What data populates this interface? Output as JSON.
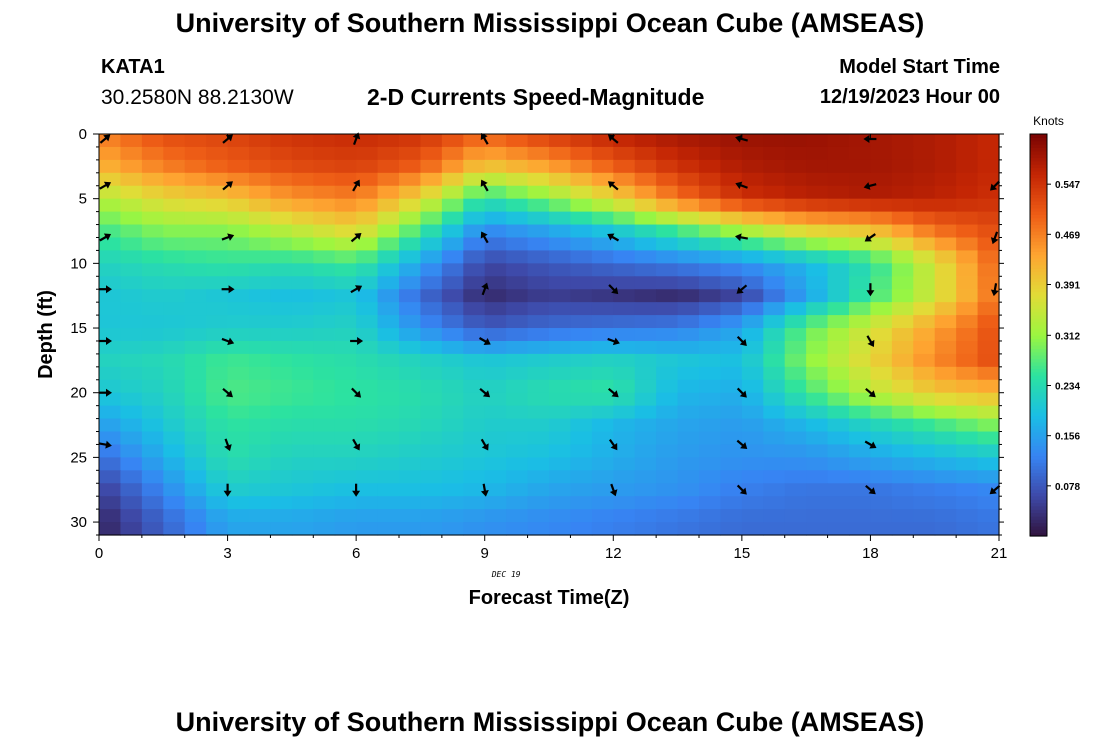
{
  "titles": {
    "top": "University of Southern Mississippi Ocean Cube (AMSEAS)",
    "bottom": "University of Southern Mississippi Ocean Cube (AMSEAS)"
  },
  "station": {
    "id": "KATA1",
    "coords": "30.2580N  88.2130W"
  },
  "model_start": {
    "label": "Model Start Time",
    "value": "12/19/2023 Hour 00"
  },
  "chart_data": {
    "type": "heatmap",
    "title": "2-D Currents Speed-Magnitude",
    "xlabel": "Forecast Time(Z)",
    "ylabel": "Depth (ft)",
    "date_label": "DEC 19",
    "xlim": [
      0,
      21
    ],
    "ylim": [
      0,
      31
    ],
    "x_ticks": [
      0,
      3,
      6,
      9,
      12,
      15,
      18,
      21
    ],
    "y_ticks": [
      0,
      5,
      10,
      15,
      20,
      25,
      30
    ],
    "colorbar": {
      "units": "Knots",
      "range": [
        0.0,
        0.625
      ],
      "ticks": [
        "0.547",
        "0.469",
        "0.391",
        "0.312",
        "0.234",
        "0.156",
        "0.078"
      ]
    },
    "grid_x": [
      0,
      1.5,
      3,
      4.5,
      6,
      7.5,
      9,
      10.5,
      12,
      13.5,
      15,
      16.5,
      18,
      19.5,
      21
    ],
    "grid_depth": [
      0,
      2.5,
      5,
      7.5,
      10,
      12.5,
      15,
      17.5,
      20,
      22.5,
      25,
      27.5,
      30
    ],
    "speed": [
      [
        0.47,
        0.52,
        0.53,
        0.55,
        0.56,
        0.55,
        0.5,
        0.54,
        0.57,
        0.59,
        0.6,
        0.6,
        0.59,
        0.58,
        0.56
      ],
      [
        0.42,
        0.47,
        0.5,
        0.52,
        0.53,
        0.5,
        0.4,
        0.44,
        0.5,
        0.55,
        0.58,
        0.59,
        0.59,
        0.58,
        0.56
      ],
      [
        0.33,
        0.38,
        0.4,
        0.45,
        0.47,
        0.38,
        0.24,
        0.3,
        0.38,
        0.48,
        0.55,
        0.57,
        0.58,
        0.57,
        0.55
      ],
      [
        0.26,
        0.3,
        0.3,
        0.34,
        0.38,
        0.26,
        0.13,
        0.16,
        0.2,
        0.26,
        0.32,
        0.38,
        0.4,
        0.48,
        0.52
      ],
      [
        0.22,
        0.24,
        0.25,
        0.24,
        0.26,
        0.16,
        0.06,
        0.08,
        0.1,
        0.12,
        0.14,
        0.18,
        0.24,
        0.36,
        0.5
      ],
      [
        0.2,
        0.21,
        0.2,
        0.19,
        0.2,
        0.1,
        0.03,
        0.05,
        0.04,
        0.03,
        0.06,
        0.16,
        0.26,
        0.36,
        0.49
      ],
      [
        0.2,
        0.2,
        0.21,
        0.21,
        0.22,
        0.14,
        0.08,
        0.1,
        0.11,
        0.12,
        0.16,
        0.28,
        0.36,
        0.44,
        0.52
      ],
      [
        0.22,
        0.23,
        0.26,
        0.25,
        0.24,
        0.22,
        0.2,
        0.21,
        0.22,
        0.2,
        0.19,
        0.3,
        0.38,
        0.46,
        0.52
      ],
      [
        0.2,
        0.22,
        0.27,
        0.26,
        0.25,
        0.24,
        0.22,
        0.24,
        0.25,
        0.18,
        0.17,
        0.26,
        0.34,
        0.4,
        0.42
      ],
      [
        0.15,
        0.2,
        0.25,
        0.24,
        0.24,
        0.23,
        0.21,
        0.21,
        0.18,
        0.16,
        0.15,
        0.18,
        0.22,
        0.26,
        0.3
      ],
      [
        0.1,
        0.17,
        0.24,
        0.22,
        0.22,
        0.21,
        0.2,
        0.19,
        0.17,
        0.15,
        0.14,
        0.14,
        0.16,
        0.18,
        0.2
      ],
      [
        0.05,
        0.13,
        0.21,
        0.2,
        0.19,
        0.19,
        0.18,
        0.16,
        0.15,
        0.14,
        0.12,
        0.11,
        0.11,
        0.12,
        0.13
      ],
      [
        0.02,
        0.09,
        0.16,
        0.16,
        0.15,
        0.15,
        0.14,
        0.13,
        0.12,
        0.11,
        0.1,
        0.1,
        0.1,
        0.1,
        0.11
      ]
    ],
    "vectors": [
      {
        "x": 0,
        "depth": 0,
        "angle": 40
      },
      {
        "x": 3,
        "depth": 0,
        "angle": 40
      },
      {
        "x": 6,
        "depth": 0,
        "angle": 70
      },
      {
        "x": 9,
        "depth": 0,
        "angle": 120
      },
      {
        "x": 12,
        "depth": 0,
        "angle": 140
      },
      {
        "x": 15,
        "depth": 0,
        "angle": 165
      },
      {
        "x": 18,
        "depth": 0,
        "angle": 180
      },
      {
        "x": 0,
        "depth": 4,
        "angle": 30
      },
      {
        "x": 3,
        "depth": 4,
        "angle": 40
      },
      {
        "x": 6,
        "depth": 4,
        "angle": 60
      },
      {
        "x": 9,
        "depth": 4,
        "angle": 120
      },
      {
        "x": 12,
        "depth": 4,
        "angle": 140
      },
      {
        "x": 15,
        "depth": 4,
        "angle": 160
      },
      {
        "x": 18,
        "depth": 4,
        "angle": 195
      },
      {
        "x": 21,
        "depth": 4,
        "angle": 225
      },
      {
        "x": 0,
        "depth": 8,
        "angle": 30
      },
      {
        "x": 3,
        "depth": 8,
        "angle": 20
      },
      {
        "x": 6,
        "depth": 8,
        "angle": 40
      },
      {
        "x": 9,
        "depth": 8,
        "angle": 120
      },
      {
        "x": 12,
        "depth": 8,
        "angle": 150
      },
      {
        "x": 15,
        "depth": 8,
        "angle": 170
      },
      {
        "x": 18,
        "depth": 8,
        "angle": 215
      },
      {
        "x": 21,
        "depth": 8,
        "angle": 250
      },
      {
        "x": 0,
        "depth": 12,
        "angle": 0
      },
      {
        "x": 3,
        "depth": 12,
        "angle": 0
      },
      {
        "x": 6,
        "depth": 12,
        "angle": 30
      },
      {
        "x": 9,
        "depth": 12,
        "angle": 70
      },
      {
        "x": 12,
        "depth": 12,
        "angle": -45
      },
      {
        "x": 15,
        "depth": 12,
        "angle": 220
      },
      {
        "x": 18,
        "depth": 12,
        "angle": -90
      },
      {
        "x": 21,
        "depth": 12,
        "angle": -100
      },
      {
        "x": 0,
        "depth": 16,
        "angle": 0
      },
      {
        "x": 3,
        "depth": 16,
        "angle": -20
      },
      {
        "x": 6,
        "depth": 16,
        "angle": 0
      },
      {
        "x": 9,
        "depth": 16,
        "angle": -30
      },
      {
        "x": 12,
        "depth": 16,
        "angle": -20
      },
      {
        "x": 15,
        "depth": 16,
        "angle": -45
      },
      {
        "x": 18,
        "depth": 16,
        "angle": -60
      },
      {
        "x": 0,
        "depth": 20,
        "angle": 0
      },
      {
        "x": 3,
        "depth": 20,
        "angle": -40
      },
      {
        "x": 6,
        "depth": 20,
        "angle": -45
      },
      {
        "x": 9,
        "depth": 20,
        "angle": -40
      },
      {
        "x": 12,
        "depth": 20,
        "angle": -40
      },
      {
        "x": 15,
        "depth": 20,
        "angle": -45
      },
      {
        "x": 18,
        "depth": 20,
        "angle": -40
      },
      {
        "x": 0,
        "depth": 24,
        "angle": -10
      },
      {
        "x": 3,
        "depth": 24,
        "angle": -70
      },
      {
        "x": 6,
        "depth": 24,
        "angle": -60
      },
      {
        "x": 9,
        "depth": 24,
        "angle": -60
      },
      {
        "x": 12,
        "depth": 24,
        "angle": -55
      },
      {
        "x": 15,
        "depth": 24,
        "angle": -40
      },
      {
        "x": 18,
        "depth": 24,
        "angle": -30
      },
      {
        "x": 3,
        "depth": 27.5,
        "angle": -90
      },
      {
        "x": 6,
        "depth": 27.5,
        "angle": -90
      },
      {
        "x": 9,
        "depth": 27.5,
        "angle": -80
      },
      {
        "x": 12,
        "depth": 27.5,
        "angle": -70
      },
      {
        "x": 15,
        "depth": 27.5,
        "angle": -45
      },
      {
        "x": 18,
        "depth": 27.5,
        "angle": -40
      },
      {
        "x": 21,
        "depth": 27.5,
        "angle": -140
      }
    ]
  }
}
